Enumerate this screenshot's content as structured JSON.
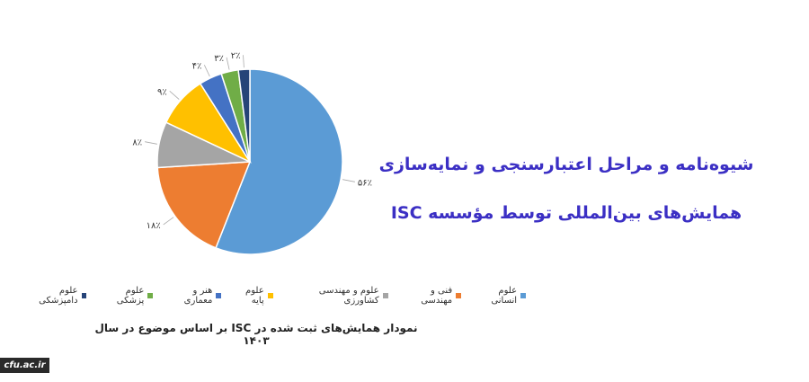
{
  "header": {
    "title_lines": [
      "شیوه‌نامه و مراحل اعتبارسنجی و نمایه‌سازی",
      "همایش‌های بین‌المللی توسط مؤسسه ISC"
    ]
  },
  "logo": "cfu.ac.ir",
  "chart_data": {
    "type": "pie",
    "title": "نمودار همایش‌های ثبت شده در ISC بر اساس موضوع در سال ۱۴۰۳",
    "categories": [
      "علوم انسانی",
      "فنی و مهندسی",
      "علوم و مهندسی کشاورزی",
      "علوم پایه",
      "هنر و معماری",
      "علوم پزشکی",
      "علوم دامپزشکی"
    ],
    "values": [
      56,
      18,
      8,
      9,
      4,
      3,
      2
    ],
    "value_labels": [
      "۵۶٪",
      "۱۸٪",
      "۸٪",
      "۹٪",
      "۴٪",
      "۳٪",
      "۲٪"
    ],
    "colors": [
      "#5b9bd5",
      "#ed7d31",
      "#a5a5a5",
      "#ffc000",
      "#4472c4",
      "#70ad47",
      "#264478"
    ]
  }
}
